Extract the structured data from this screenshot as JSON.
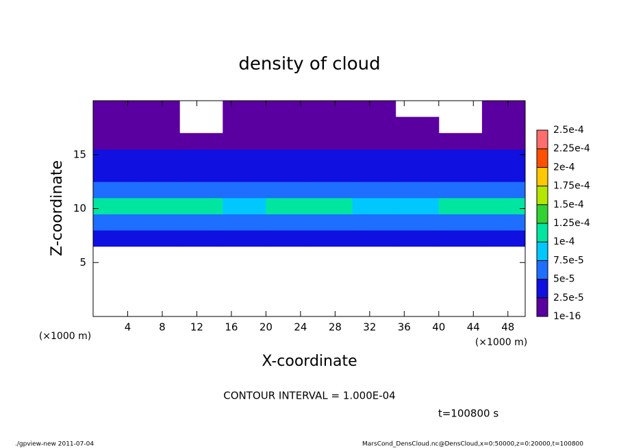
{
  "chart_data": {
    "type": "heatmap",
    "title": "density of cloud",
    "x_label": "X-coordinate",
    "y_label": "Z-coordinate",
    "x_unit": "(×1000 m)",
    "y_unit": "(×1000 m)",
    "contour_note": "CONTOUR INTERVAL = 1.000E-04",
    "time_note": "t=100800 s",
    "footer_left": "./gpview-new  2011-07-04",
    "footer_right": "MarsCond_DensCloud.nc@DensCloud,x=0:50000,z=0:20000,t=100800",
    "xlim": [
      0,
      50
    ],
    "ylim": [
      0,
      20
    ],
    "xticks": [
      4,
      8,
      12,
      16,
      20,
      24,
      28,
      32,
      36,
      40,
      44,
      48
    ],
    "yticks": [
      5,
      10,
      15
    ],
    "x_edges": [
      0,
      5,
      10,
      15,
      20,
      25,
      30,
      35,
      40,
      45,
      50
    ],
    "y_edges": [
      6.5,
      8,
      9.5,
      11,
      12.5,
      14,
      15.5,
      17,
      18.5,
      20
    ],
    "values": [
      [
        3e-05,
        3e-05,
        3e-05,
        3e-05,
        3e-05,
        3e-05,
        3e-05,
        3e-05,
        3e-05,
        3e-05
      ],
      [
        7e-05,
        7e-05,
        7e-05,
        7e-05,
        7e-05,
        7e-05,
        7e-05,
        7e-05,
        7e-05,
        7e-05
      ],
      [
        0.0001,
        0.00011,
        0.00011,
        8e-05,
        0.00011,
        0.00011,
        9e-05,
        8e-05,
        0.000105,
        0.000105
      ],
      [
        6e-05,
        6e-05,
        6e-05,
        6e-05,
        6e-05,
        6e-05,
        6e-05,
        6e-05,
        6e-05,
        6e-05
      ],
      [
        4e-05,
        4e-05,
        4e-05,
        4e-05,
        4e-05,
        4e-05,
        4e-05,
        4e-05,
        4e-05,
        4e-05
      ],
      [
        2.5e-05,
        2.5e-05,
        2.5e-05,
        2.5e-05,
        2.5e-05,
        2.5e-05,
        2.5e-05,
        2.5e-05,
        2.5e-05,
        2.5e-05
      ],
      [
        1.5e-05,
        1.5e-05,
        1.5e-05,
        1.5e-05,
        2e-05,
        2e-05,
        1.5e-05,
        1.5e-05,
        1.5e-05,
        1.5e-05
      ],
      [
        1e-05,
        1e-05,
        null,
        1e-05,
        1e-05,
        1e-05,
        1e-05,
        1e-05,
        null,
        1e-05
      ],
      [
        1e-05,
        1e-05,
        null,
        1e-05,
        1e-05,
        1e-05,
        1e-05,
        null,
        null,
        1e-05
      ]
    ],
    "levels": [
      {
        "value": 1e-16,
        "label": "1e-16"
      },
      {
        "value": 2.5e-05,
        "label": "2.5e-5"
      },
      {
        "value": 5e-05,
        "label": "5e-5"
      },
      {
        "value": 7.5e-05,
        "label": "7.5e-5"
      },
      {
        "value": 0.0001,
        "label": "1e-4"
      },
      {
        "value": 0.000125,
        "label": "1.25e-4"
      },
      {
        "value": 0.00015,
        "label": "1.5e-4"
      },
      {
        "value": 0.000175,
        "label": "1.75e-4"
      },
      {
        "value": 0.0002,
        "label": "2e-4"
      },
      {
        "value": 0.000225,
        "label": "2.25e-4"
      },
      {
        "value": 0.00025,
        "label": "2.5e-4"
      }
    ],
    "colors": [
      "#5a00a0",
      "#1010e0",
      "#1e6eff",
      "#00c8ff",
      "#00e6a0",
      "#32d232",
      "#b4e600",
      "#ffc800",
      "#ff5000",
      "#ff6e6e"
    ]
  }
}
